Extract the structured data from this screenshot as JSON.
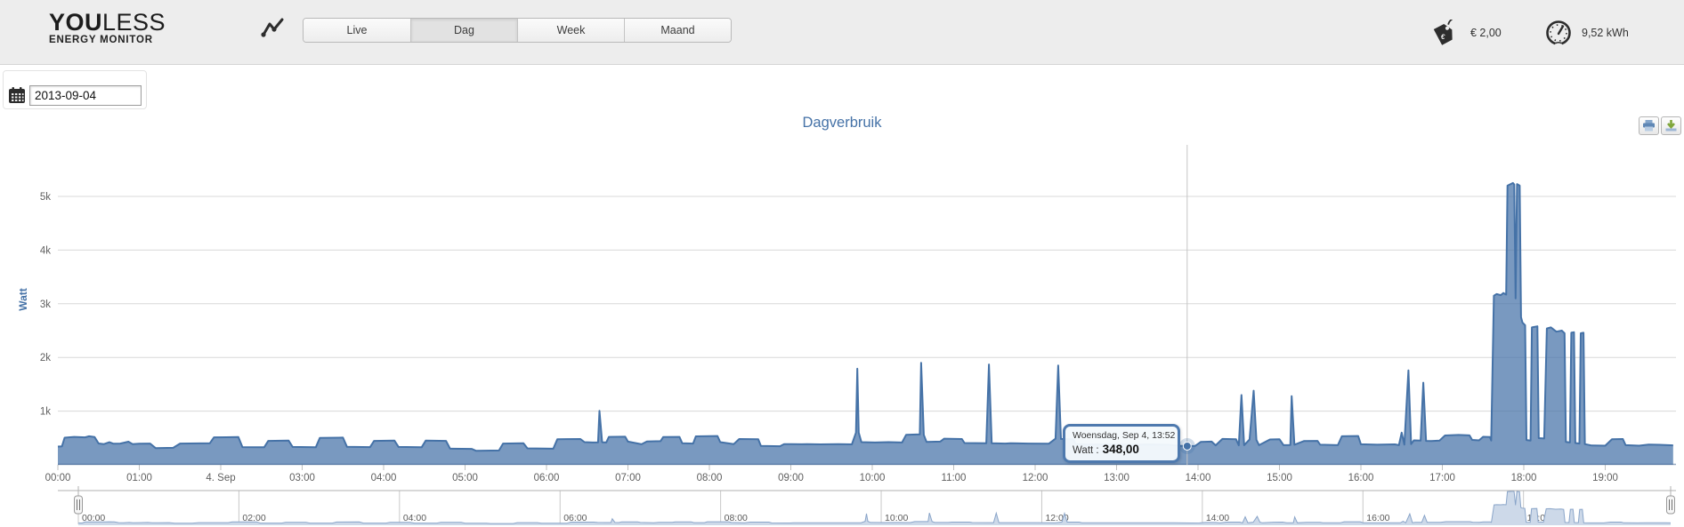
{
  "brand": {
    "you": "YOU",
    "less": "LESS",
    "sub": "ENERGY MONITOR"
  },
  "header": {
    "tabs": [
      {
        "label": "Live",
        "selected": false
      },
      {
        "label": "Dag",
        "selected": true
      },
      {
        "label": "Week",
        "selected": false
      },
      {
        "label": "Maand",
        "selected": false
      }
    ],
    "price_label": "€ 2,00",
    "energy_label": "9,52 kWh",
    "icons": [
      "line-chart-icon",
      "price-tag-icon",
      "gauge-icon"
    ]
  },
  "date_picker": {
    "value": "2013-09-04",
    "icon": "calendar-icon"
  },
  "chart": {
    "title": "Dagverbruik",
    "yaxis_title": "Watt"
  },
  "export": {
    "icons": [
      "print-icon",
      "download-icon"
    ]
  },
  "tooltip": {
    "header": "Woensdag, Sep 4, 13:52",
    "series_label": "Watt :",
    "value": "348,00"
  },
  "chart_data": {
    "type": "area",
    "title": "Dagverbruik",
    "ylabel": "Watt",
    "x_unit": "minutes_since_midnight",
    "xlim": [
      0,
      1190
    ],
    "ylim": [
      0,
      5960
    ],
    "grid": true,
    "series_color": "#4572A7",
    "y_ticks": [
      {
        "label": "1k",
        "value": 1000
      },
      {
        "label": "2k",
        "value": 2000
      },
      {
        "label": "3k",
        "value": 3000
      },
      {
        "label": "4k",
        "value": 4000
      },
      {
        "label": "5k",
        "value": 5000
      }
    ],
    "x_ticks": [
      {
        "label": "00:00",
        "value": 0
      },
      {
        "label": "01:00",
        "value": 60
      },
      {
        "label": "4. Sep",
        "value": 120
      },
      {
        "label": "03:00",
        "value": 180
      },
      {
        "label": "04:00",
        "value": 240
      },
      {
        "label": "05:00",
        "value": 300
      },
      {
        "label": "06:00",
        "value": 360
      },
      {
        "label": "07:00",
        "value": 420
      },
      {
        "label": "08:00",
        "value": 480
      },
      {
        "label": "09:00",
        "value": 540
      },
      {
        "label": "10:00",
        "value": 600
      },
      {
        "label": "11:00",
        "value": 660
      },
      {
        "label": "12:00",
        "value": 720
      },
      {
        "label": "13:00",
        "value": 780
      },
      {
        "label": "14:00",
        "value": 840
      },
      {
        "label": "15:00",
        "value": 900
      },
      {
        "label": "16:00",
        "value": 960
      },
      {
        "label": "17:00",
        "value": 1020
      },
      {
        "label": "18:00",
        "value": 1080
      },
      {
        "label": "19:00",
        "value": 1140
      }
    ],
    "navigator_ticks": [
      {
        "label": "00:00",
        "value": 0
      },
      {
        "label": "02:00",
        "value": 120
      },
      {
        "label": "04:00",
        "value": 240
      },
      {
        "label": "06:00",
        "value": 360
      },
      {
        "label": "08:00",
        "value": 480
      },
      {
        "label": "10:00",
        "value": 600
      },
      {
        "label": "12:00",
        "value": 720
      },
      {
        "label": "14:00",
        "value": 840
      },
      {
        "label": "16:00",
        "value": 960
      },
      {
        "label": "18:00",
        "value": 1080
      }
    ],
    "hover_point": {
      "minutes": 832,
      "watt": 348,
      "time": "13:52"
    },
    "series": [
      {
        "name": "Watt",
        "points": [
          [
            0,
            340
          ],
          [
            3,
            345
          ],
          [
            5,
            505
          ],
          [
            12,
            520
          ],
          [
            20,
            512
          ],
          [
            23,
            532
          ],
          [
            27,
            518
          ],
          [
            30,
            398
          ],
          [
            34,
            386
          ],
          [
            38,
            420
          ],
          [
            41,
            392
          ],
          [
            46,
            396
          ],
          [
            52,
            430
          ],
          [
            55,
            386
          ],
          [
            60,
            392
          ],
          [
            68,
            396
          ],
          [
            72,
            312
          ],
          [
            85,
            316
          ],
          [
            90,
            396
          ],
          [
            112,
            402
          ],
          [
            115,
            512
          ],
          [
            133,
            516
          ],
          [
            136,
            330
          ],
          [
            152,
            326
          ],
          [
            155,
            446
          ],
          [
            170,
            450
          ],
          [
            173,
            332
          ],
          [
            190,
            326
          ],
          [
            193,
            500
          ],
          [
            210,
            506
          ],
          [
            213,
            336
          ],
          [
            230,
            330
          ],
          [
            233,
            446
          ],
          [
            248,
            450
          ],
          [
            251,
            332
          ],
          [
            268,
            326
          ],
          [
            271,
            450
          ],
          [
            286,
            446
          ],
          [
            289,
            302
          ],
          [
            305,
            296
          ],
          [
            308,
            262
          ],
          [
            325,
            266
          ],
          [
            328,
            396
          ],
          [
            343,
            402
          ],
          [
            346,
            306
          ],
          [
            365,
            300
          ],
          [
            368,
            476
          ],
          [
            385,
            480
          ],
          [
            388,
            422
          ],
          [
            394,
            416
          ],
          [
            398,
            418
          ],
          [
            399,
            1005
          ],
          [
            401,
            420
          ],
          [
            404,
            416
          ],
          [
            406,
            520
          ],
          [
            418,
            524
          ],
          [
            420,
            432
          ],
          [
            430,
            382
          ],
          [
            434,
            436
          ],
          [
            444,
            440
          ],
          [
            446,
            516
          ],
          [
            458,
            520
          ],
          [
            460,
            402
          ],
          [
            468,
            396
          ],
          [
            470,
            530
          ],
          [
            486,
            536
          ],
          [
            488,
            422
          ],
          [
            498,
            386
          ],
          [
            502,
            480
          ],
          [
            516,
            476
          ],
          [
            518,
            352
          ],
          [
            532,
            346
          ],
          [
            535,
            386
          ],
          [
            548,
            382
          ],
          [
            552,
            386
          ],
          [
            562,
            380
          ],
          [
            575,
            386
          ],
          [
            585,
            380
          ],
          [
            588,
            600
          ],
          [
            589,
            1790
          ],
          [
            590,
            600
          ],
          [
            592,
            422
          ],
          [
            602,
            416
          ],
          [
            612,
            422
          ],
          [
            622,
            416
          ],
          [
            625,
            560
          ],
          [
            635,
            566
          ],
          [
            636,
            1900
          ],
          [
            638,
            558
          ],
          [
            640,
            426
          ],
          [
            650,
            432
          ],
          [
            653,
            486
          ],
          [
            666,
            480
          ],
          [
            668,
            406
          ],
          [
            684,
            400
          ],
          [
            686,
            1870
          ],
          [
            688,
            402
          ],
          [
            698,
            396
          ],
          [
            702,
            402
          ],
          [
            715,
            396
          ],
          [
            730,
            392
          ],
          [
            735,
            486
          ],
          [
            737,
            1850
          ],
          [
            739,
            482
          ],
          [
            748,
            476
          ],
          [
            750,
            386
          ],
          [
            760,
            376
          ],
          [
            772,
            382
          ],
          [
            790,
            374
          ],
          [
            805,
            380
          ],
          [
            818,
            372
          ],
          [
            825,
            356
          ],
          [
            832,
            348
          ],
          [
            838,
            352
          ],
          [
            842,
            426
          ],
          [
            850,
            432
          ],
          [
            853,
            362
          ],
          [
            858,
            482
          ],
          [
            868,
            476
          ],
          [
            870,
            362
          ],
          [
            872,
            1300
          ],
          [
            874,
            366
          ],
          [
            878,
            472
          ],
          [
            881,
            1380
          ],
          [
            883,
            466
          ],
          [
            885,
            366
          ],
          [
            893,
            472
          ],
          [
            900,
            476
          ],
          [
            903,
            366
          ],
          [
            908,
            370
          ],
          [
            909,
            1280
          ],
          [
            911,
            374
          ],
          [
            918,
            442
          ],
          [
            928,
            446
          ],
          [
            930,
            374
          ],
          [
            943,
            366
          ],
          [
            946,
            532
          ],
          [
            958,
            536
          ],
          [
            960,
            382
          ],
          [
            972,
            374
          ],
          [
            985,
            380
          ],
          [
            988,
            366
          ],
          [
            990,
            600
          ],
          [
            992,
            376
          ],
          [
            995,
            1760
          ],
          [
            997,
            386
          ],
          [
            999,
            456
          ],
          [
            1004,
            452
          ],
          [
            1006,
            1530
          ],
          [
            1008,
            446
          ],
          [
            1012,
            442
          ],
          [
            1018,
            452
          ],
          [
            1022,
            546
          ],
          [
            1032,
            556
          ],
          [
            1040,
            548
          ],
          [
            1042,
            464
          ],
          [
            1047,
            456
          ],
          [
            1050,
            522
          ],
          [
            1055,
            516
          ],
          [
            1056,
            452
          ],
          [
            1058,
            3150
          ],
          [
            1060,
            3180
          ],
          [
            1063,
            3160
          ],
          [
            1065,
            3200
          ],
          [
            1067,
            3170
          ],
          [
            1068,
            5200
          ],
          [
            1072,
            5250
          ],
          [
            1073,
            5220
          ],
          [
            1074,
            3100
          ],
          [
            1075,
            5230
          ],
          [
            1077,
            5200
          ],
          [
            1078,
            2750
          ],
          [
            1079,
            2650
          ],
          [
            1081,
            2600
          ],
          [
            1082,
            462
          ],
          [
            1085,
            452
          ],
          [
            1086,
            2560
          ],
          [
            1090,
            2580
          ],
          [
            1091,
            496
          ],
          [
            1095,
            490
          ],
          [
            1097,
            2540
          ],
          [
            1100,
            2560
          ],
          [
            1104,
            2480
          ],
          [
            1108,
            2500
          ],
          [
            1110,
            2450
          ],
          [
            1111,
            426
          ],
          [
            1114,
            416
          ],
          [
            1115,
            2460
          ],
          [
            1117,
            2470
          ],
          [
            1118,
            406
          ],
          [
            1121,
            396
          ],
          [
            1122,
            2450
          ],
          [
            1124,
            2460
          ],
          [
            1125,
            386
          ],
          [
            1130,
            360
          ],
          [
            1140,
            356
          ],
          [
            1145,
            476
          ],
          [
            1153,
            480
          ],
          [
            1155,
            366
          ],
          [
            1165,
            356
          ],
          [
            1172,
            378
          ],
          [
            1180,
            372
          ],
          [
            1186,
            366
          ],
          [
            1190,
            362
          ]
        ]
      }
    ]
  }
}
